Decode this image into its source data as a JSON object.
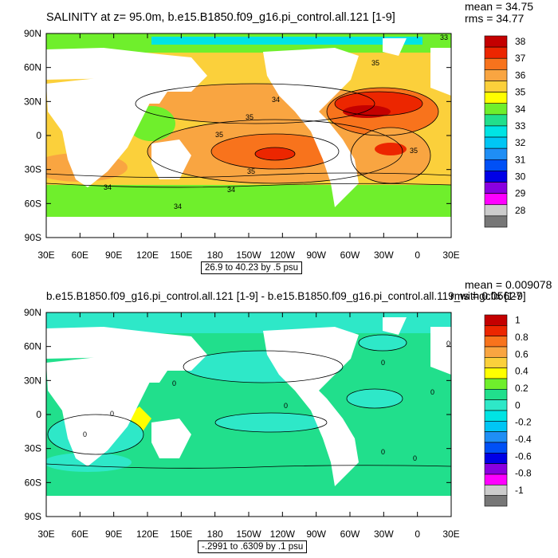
{
  "chart_data": [
    {
      "type": "heatmap",
      "title": "SALINITY at z=  95.0m, b.e15.B1850.f09_g16.pi_control.all.121 [1-9]",
      "stats": {
        "mean": "mean = 34.75",
        "rms": "rms = 34.77"
      },
      "range_label": "26.9 to 40.23 by .5 psu",
      "x_ticks": [
        "30E",
        "60E",
        "90E",
        "120E",
        "150E",
        "180",
        "150W",
        "120W",
        "90W",
        "60W",
        "30W",
        "0",
        "30E"
      ],
      "y_ticks": [
        "90N",
        "60N",
        "30N",
        "0",
        "30S",
        "60S",
        "90S"
      ],
      "colorbar_labels": [
        "38",
        "37",
        "36",
        "35",
        "34",
        "33",
        "32",
        "31",
        "30",
        "29",
        "28"
      ],
      "colorbar_colors": [
        "#c40000",
        "#ec2600",
        "#f8731c",
        "#f9a541",
        "#fbd03b",
        "#ffff00",
        "#6fef2c",
        "#21df8c",
        "#00e4e4",
        "#00c6f5",
        "#1f8ef5",
        "#0050f6",
        "#0000e6",
        "#8a00e0",
        "#ff00ff",
        "#cccccc",
        "#777777"
      ],
      "contour_labels": [
        "33",
        "35",
        "34",
        "35",
        "35",
        "35",
        "35",
        "34",
        "34",
        "34"
      ]
    },
    {
      "type": "heatmap",
      "title": "b.e15.B1850.f09_g16.pi_control.all.121 [1-9] - b.e15.B1850.f09_g16.pi_control.all.119_withgcfix [1-9]",
      "stats": {
        "mean": "mean = 0.009078",
        "rms": "rms = 0.05627"
      },
      "range_label": "-.2991 to .6309 by .1 psu",
      "x_ticks": [
        "30E",
        "60E",
        "90E",
        "120E",
        "150E",
        "180",
        "150W",
        "120W",
        "90W",
        "60W",
        "30W",
        "0",
        "30E"
      ],
      "y_ticks": [
        "90N",
        "60N",
        "30N",
        "0",
        "30S",
        "60S",
        "90S"
      ],
      "colorbar_labels": [
        "1",
        "0.8",
        "0.6",
        "0.4",
        "0.2",
        "0",
        "-0.2",
        "-0.4",
        "-0.6",
        "-0.8",
        "-1"
      ],
      "colorbar_colors": [
        "#c40000",
        "#ec2600",
        "#f8731c",
        "#f9a541",
        "#fbd03b",
        "#ffff00",
        "#6fef2c",
        "#21df8c",
        "#2ee8c8",
        "#00e4e4",
        "#00c6f5",
        "#1f8ef5",
        "#0050f6",
        "#0000e6",
        "#8a00e0",
        "#ff00ff",
        "#cccccc",
        "#777777"
      ],
      "contour_labels": [
        "0",
        "0",
        "0",
        "0",
        "0",
        "0",
        "0",
        "0",
        "0"
      ]
    }
  ]
}
